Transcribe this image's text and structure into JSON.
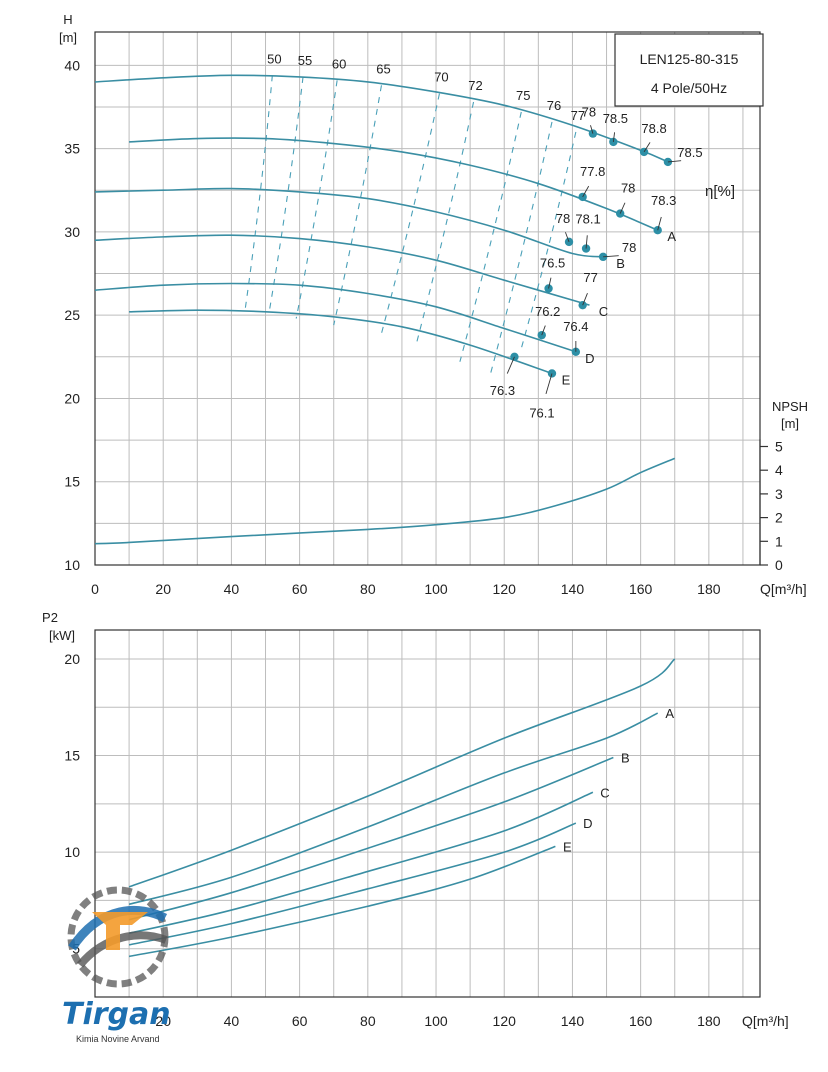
{
  "chart_data": [
    {
      "type": "line",
      "title": "",
      "model_box": {
        "line1": "LEN125-80-315",
        "line2": "4 Pole/50Hz"
      },
      "ylabel": "H",
      "yunit": "[m]",
      "xlabel": "Q[m³/h]",
      "xlim": [
        0,
        195
      ],
      "ylim": [
        10,
        42
      ],
      "xticks": [
        0,
        20,
        40,
        60,
        80,
        100,
        120,
        140,
        160,
        180
      ],
      "yticks": [
        10,
        15,
        20,
        25,
        30,
        35,
        40
      ],
      "grid": true,
      "eta_label": "η[%]",
      "series": [
        {
          "name": "",
          "x": [
            0,
            20,
            40,
            60,
            80,
            100,
            120,
            140,
            160,
            168
          ],
          "y": [
            39.0,
            39.25,
            39.4,
            39.3,
            39.0,
            38.4,
            37.6,
            36.4,
            34.9,
            34.2
          ]
        },
        {
          "name": "A",
          "x": [
            10,
            30,
            50,
            70,
            90,
            110,
            130,
            150,
            165
          ],
          "y": [
            35.4,
            35.6,
            35.6,
            35.3,
            34.8,
            34.0,
            32.9,
            31.4,
            30.1
          ]
        },
        {
          "name": "B",
          "x": [
            0,
            20,
            40,
            60,
            80,
            100,
            120,
            140,
            150
          ],
          "y": [
            32.4,
            32.5,
            32.6,
            32.4,
            32.0,
            31.2,
            30.1,
            28.7,
            28.5
          ]
        },
        {
          "name": "C",
          "x": [
            0,
            20,
            40,
            60,
            80,
            100,
            120,
            145
          ],
          "y": [
            29.5,
            29.7,
            29.8,
            29.6,
            29.1,
            28.3,
            27.1,
            25.6
          ]
        },
        {
          "name": "D",
          "x": [
            0,
            20,
            40,
            60,
            80,
            100,
            120,
            141
          ],
          "y": [
            26.5,
            26.8,
            26.9,
            26.8,
            26.3,
            25.5,
            24.2,
            22.8
          ]
        },
        {
          "name": "E",
          "x": [
            10,
            30,
            50,
            70,
            90,
            110,
            134
          ],
          "y": [
            25.2,
            25.3,
            25.2,
            24.9,
            24.3,
            23.2,
            21.5
          ]
        }
      ],
      "iso_efficiency_lines": [
        {
          "label": "50",
          "x": [
            52,
            44
          ],
          "y": [
            39.4,
            25.3
          ]
        },
        {
          "label": "55",
          "x": [
            61,
            51
          ],
          "y": [
            39.3,
            25.1
          ]
        },
        {
          "label": "60",
          "x": [
            71,
            59
          ],
          "y": [
            39.1,
            24.8
          ]
        },
        {
          "label": "65",
          "x": [
            84,
            70
          ],
          "y": [
            38.8,
            24.4
          ]
        },
        {
          "label": "70",
          "x": [
            101,
            84
          ],
          "y": [
            38.3,
            23.9
          ]
        },
        {
          "label": "72",
          "x": [
            111,
            94
          ],
          "y": [
            37.8,
            23.1
          ]
        },
        {
          "label": "75",
          "x": [
            125,
            107
          ],
          "y": [
            37.2,
            22.2
          ]
        },
        {
          "label": "76",
          "x": [
            134,
            116
          ],
          "y": [
            36.6,
            21.5
          ]
        },
        {
          "label": "77",
          "x": [
            141,
            125
          ],
          "y": [
            36.0,
            23.0
          ]
        }
      ],
      "efficiency_points": [
        {
          "label": "78",
          "x": 146,
          "y": 35.9
        },
        {
          "label": "78.5",
          "x": 152,
          "y": 35.4
        },
        {
          "label": "78.8",
          "x": 161,
          "y": 34.8
        },
        {
          "label": "78.5",
          "x": 168,
          "y": 34.2
        },
        {
          "label": "77.8",
          "x": 143,
          "y": 32.1
        },
        {
          "label": "78",
          "x": 154,
          "y": 31.1
        },
        {
          "label": "78.3",
          "x": 165,
          "y": 30.1
        },
        {
          "label": "78",
          "x": 139,
          "y": 29.4
        },
        {
          "label": "78.1",
          "x": 144,
          "y": 29.0
        },
        {
          "label": "78",
          "x": 149,
          "y": 28.5
        },
        {
          "label": "76.5",
          "x": 133,
          "y": 26.6
        },
        {
          "label": "77",
          "x": 143,
          "y": 25.6
        },
        {
          "label": "76.2",
          "x": 131,
          "y": 23.8
        },
        {
          "label": "76.4",
          "x": 141,
          "y": 22.8
        },
        {
          "label": "76.3",
          "x": 123,
          "y": 22.5
        },
        {
          "label": "76.1",
          "x": 134,
          "y": 21.5
        }
      ],
      "npsh": {
        "label": "NPSH",
        "unit": "[m]",
        "ticks": [
          0,
          1,
          2,
          3,
          4,
          5
        ],
        "x": [
          0,
          10,
          40,
          80,
          100,
          120,
          135,
          150,
          160,
          170
        ],
        "y": [
          0.9,
          0.95,
          1.2,
          1.5,
          1.7,
          2.0,
          2.5,
          3.2,
          3.9,
          4.5
        ]
      }
    },
    {
      "type": "line",
      "title": "",
      "ylabel": "P2",
      "yunit": "[kW]",
      "xlabel": "Q[m³/h]",
      "xlim": [
        0,
        195
      ],
      "ylim": [
        2.5,
        21.5
      ],
      "xticks": [
        0,
        20,
        40,
        60,
        80,
        100,
        120,
        140,
        160,
        180
      ],
      "yticks": [
        5,
        10,
        15,
        20
      ],
      "grid": true,
      "series": [
        {
          "name": "",
          "x": [
            10,
            40,
            80,
            120,
            160,
            170
          ],
          "y": [
            8.2,
            10.1,
            12.9,
            15.9,
            18.6,
            20.0
          ]
        },
        {
          "name": "A",
          "x": [
            10,
            40,
            80,
            120,
            150,
            165
          ],
          "y": [
            7.3,
            8.7,
            11.3,
            14.1,
            15.9,
            17.2
          ]
        },
        {
          "name": "B",
          "x": [
            10,
            40,
            80,
            120,
            152
          ],
          "y": [
            6.5,
            7.9,
            10.2,
            12.6,
            14.9
          ]
        },
        {
          "name": "C",
          "x": [
            10,
            40,
            80,
            120,
            146
          ],
          "y": [
            5.8,
            7.0,
            9.0,
            11.1,
            13.1
          ]
        },
        {
          "name": "D",
          "x": [
            10,
            40,
            80,
            120,
            141
          ],
          "y": [
            5.2,
            6.3,
            8.1,
            10.0,
            11.5
          ]
        },
        {
          "name": "E",
          "x": [
            10,
            40,
            80,
            110,
            135
          ],
          "y": [
            4.6,
            5.6,
            7.2,
            8.6,
            10.3
          ]
        }
      ]
    }
  ],
  "logo": {
    "name": "Tirgan",
    "subtitle": "Kimia Novine Arvand"
  }
}
